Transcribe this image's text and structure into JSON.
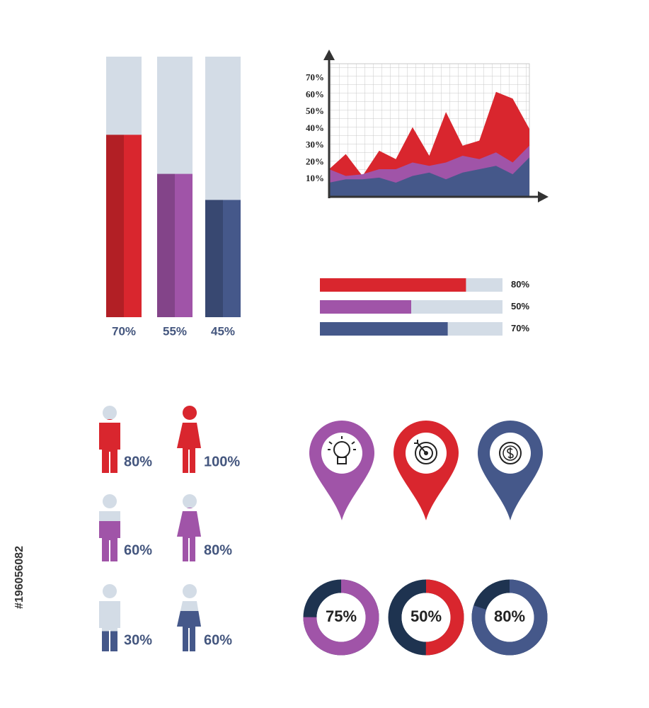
{
  "stock_id": "#196056082",
  "chart_data": [
    {
      "type": "bar",
      "values": [
        70,
        55,
        45
      ],
      "value_labels": [
        "70%",
        "55%",
        "45%"
      ],
      "colors": [
        "#d9262e",
        "#a054a8",
        "#45588a"
      ],
      "ylim": [
        0,
        100
      ]
    },
    {
      "type": "area",
      "ylim": [
        0,
        80
      ],
      "yticks": [
        {
          "value": 10,
          "label": "10%"
        },
        {
          "value": 20,
          "label": "20%"
        },
        {
          "value": 30,
          "label": "30%"
        },
        {
          "value": 40,
          "label": "40%"
        },
        {
          "value": 50,
          "label": "50%"
        },
        {
          "value": 60,
          "label": "60%"
        },
        {
          "value": 70,
          "label": "70%"
        }
      ],
      "series": [
        {
          "color": "#d9262e",
          "values": [
            16,
            25,
            12,
            27,
            22,
            41,
            24,
            50,
            30,
            33,
            62,
            58,
            40
          ]
        },
        {
          "color": "#a054a8",
          "values": [
            16,
            12,
            13,
            16,
            16,
            20,
            18,
            20,
            24,
            22,
            26,
            20,
            30
          ]
        },
        {
          "color": "#45588a",
          "values": [
            8,
            10,
            10,
            11,
            8,
            12,
            14,
            10,
            14,
            16,
            18,
            13,
            23
          ]
        }
      ]
    },
    {
      "type": "hbar",
      "values": [
        80,
        50,
        70
      ],
      "value_labels": [
        "80%",
        "50%",
        "70%"
      ],
      "colors": [
        "#d9262e",
        "#a054a8",
        "#45588a"
      ],
      "xlim": [
        0,
        100
      ]
    },
    {
      "type": "pictogram",
      "values": [
        80,
        100,
        60,
        80,
        30,
        60
      ],
      "value_labels": [
        "80%",
        "100%",
        "60%",
        "80%",
        "30%",
        "60%"
      ],
      "colors": [
        "#d9262e",
        "#d9262e",
        "#a054a8",
        "#a054a8",
        "#45588a",
        "#45588a"
      ],
      "shapes": [
        "man",
        "woman",
        "man",
        "woman",
        "man",
        "woman"
      ],
      "ylim": [
        0,
        100
      ]
    },
    {
      "type": "donut",
      "values": [
        75,
        50,
        80
      ],
      "value_labels": [
        "75%",
        "50%",
        "80%"
      ],
      "colors": [
        "#a054a8",
        "#d9262e",
        "#45588a"
      ],
      "ylim": [
        0,
        100
      ]
    }
  ]
}
